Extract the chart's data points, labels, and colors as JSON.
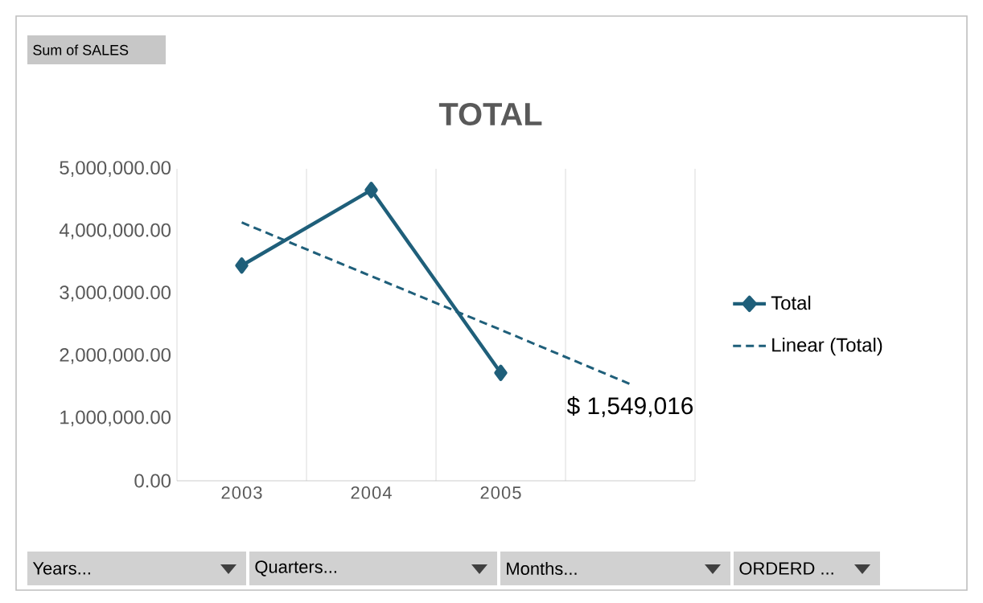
{
  "chart_data": {
    "type": "line",
    "title": "TOTAL",
    "categories": [
      "2003",
      "2004",
      "2005",
      null
    ],
    "series": [
      {
        "name": "Total",
        "color": "#1f5f7a",
        "values": [
          3450000,
          4660000,
          1730000,
          null
        ],
        "marker": "diamond",
        "line_style": "solid"
      },
      {
        "name": "Linear (Total)",
        "color": "#1f5f7a",
        "values": [
          4140000,
          3280000,
          2420000,
          1549016
        ],
        "marker": "none",
        "line_style": "dashed"
      }
    ],
    "ylim": [
      0,
      5000000
    ],
    "yticks": [
      {
        "value": 0,
        "label": "0.00"
      },
      {
        "value": 1000000,
        "label": "1,000,000.00"
      },
      {
        "value": 2000000,
        "label": "2,000,000.00"
      },
      {
        "value": 3000000,
        "label": "3,000,000.00"
      },
      {
        "value": 4000000,
        "label": "4,000,000.00"
      },
      {
        "value": 5000000,
        "label": "5,000,000.00"
      }
    ],
    "grid": "x",
    "legend": "right",
    "annotations": [
      "Sum of SALES",
      {
        "text": "$ 1,549,016",
        "y": 1549016
      },
      "Years...",
      "Quarters...",
      "Months...",
      "ORDERD ..."
    ]
  }
}
